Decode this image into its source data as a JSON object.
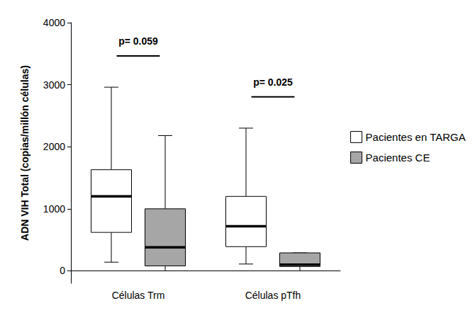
{
  "chart_data": {
    "type": "boxplot",
    "y_label": "ADN VIH Total (copias/millón células)",
    "categories": [
      "Células Trm",
      "Células pTfh"
    ],
    "ylim": [
      -200,
      4000
    ],
    "yticks": [
      0,
      1000,
      2000,
      3000,
      4000
    ],
    "grid": false,
    "legend": "right",
    "series": [
      {
        "name": "Pacientes en TARGA",
        "color": "#ffffff",
        "values": [
          [
            140,
            620,
            1200,
            1630,
            2960
          ],
          [
            110,
            390,
            720,
            1200,
            2300
          ]
        ]
      },
      {
        "name": "Pacientes CE",
        "color": "#a6a6a6",
        "values": [
          [
            0,
            80,
            380,
            1000,
            2180
          ],
          [
            0,
            70,
            100,
            290,
            290
          ]
        ]
      }
    ],
    "annotations": [
      {
        "text": "p= 0.059",
        "category": "Células Trm"
      },
      {
        "text": "p= 0.025",
        "category": "Células pTfh"
      }
    ]
  }
}
